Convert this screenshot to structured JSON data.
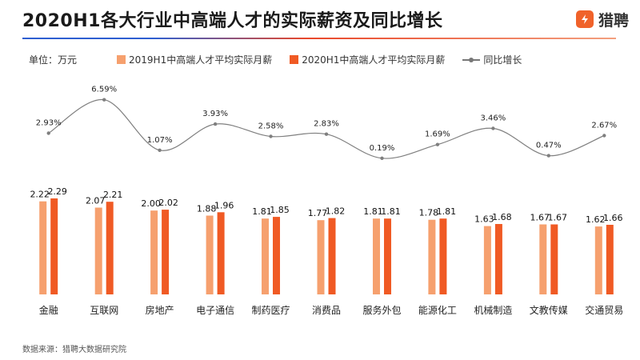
{
  "header": {
    "title": "2020H1各大行业中高端人才的实际薪资及同比增长",
    "brand": "猎聘",
    "brand_color": "#f0622a"
  },
  "unit_label": "单位：万元",
  "source": "数据来源：猎聘大数据研究院",
  "colors": {
    "series_2019": "#f6a06e",
    "series_2020": "#f05a24",
    "growth_line": "#7f7f7f"
  },
  "chart_data": {
    "type": "bar",
    "categories": [
      "金融",
      "互联网",
      "房地产",
      "电子通信",
      "制药医疗",
      "消费品",
      "服务外包",
      "能源化工",
      "机械制造",
      "文教传媒",
      "交通贸易"
    ],
    "series": [
      {
        "name": "2019H1中高端人才平均实际月薪",
        "values": [
          2.22,
          2.07,
          2.0,
          1.88,
          1.81,
          1.77,
          1.81,
          1.78,
          1.63,
          1.67,
          1.62
        ]
      },
      {
        "name": "2020H1中高端人才平均实际月薪",
        "values": [
          2.29,
          2.21,
          2.02,
          1.96,
          1.85,
          1.82,
          1.81,
          1.81,
          1.68,
          1.67,
          1.66
        ]
      }
    ],
    "line_series": {
      "name": "同比增长",
      "type": "line",
      "values": [
        2.93,
        6.59,
        1.07,
        3.93,
        2.58,
        2.83,
        0.19,
        1.69,
        3.46,
        0.47,
        2.67
      ],
      "labels": [
        "2.93%",
        "6.59%",
        "1.07%",
        "3.93%",
        "2.58%",
        "2.83%",
        "0.19%",
        "1.69%",
        "3.46%",
        "0.47%",
        "2.67%"
      ]
    },
    "bar_value_labels": [
      [
        "2.22",
        "2.07",
        "2.00",
        "1.88",
        "1.81",
        "1.77",
        "1.81",
        "1.78",
        "1.63",
        "1.67",
        "1.62"
      ],
      [
        "2.29",
        "2.21",
        "2.02",
        "1.96",
        "1.85",
        "1.82",
        "1.81",
        "1.81",
        "1.68",
        "1.67",
        "1.66"
      ]
    ],
    "ylim": [
      0,
      3.0
    ],
    "line_ylim": [
      0,
      7
    ],
    "legend_position": "top",
    "grid": false
  }
}
